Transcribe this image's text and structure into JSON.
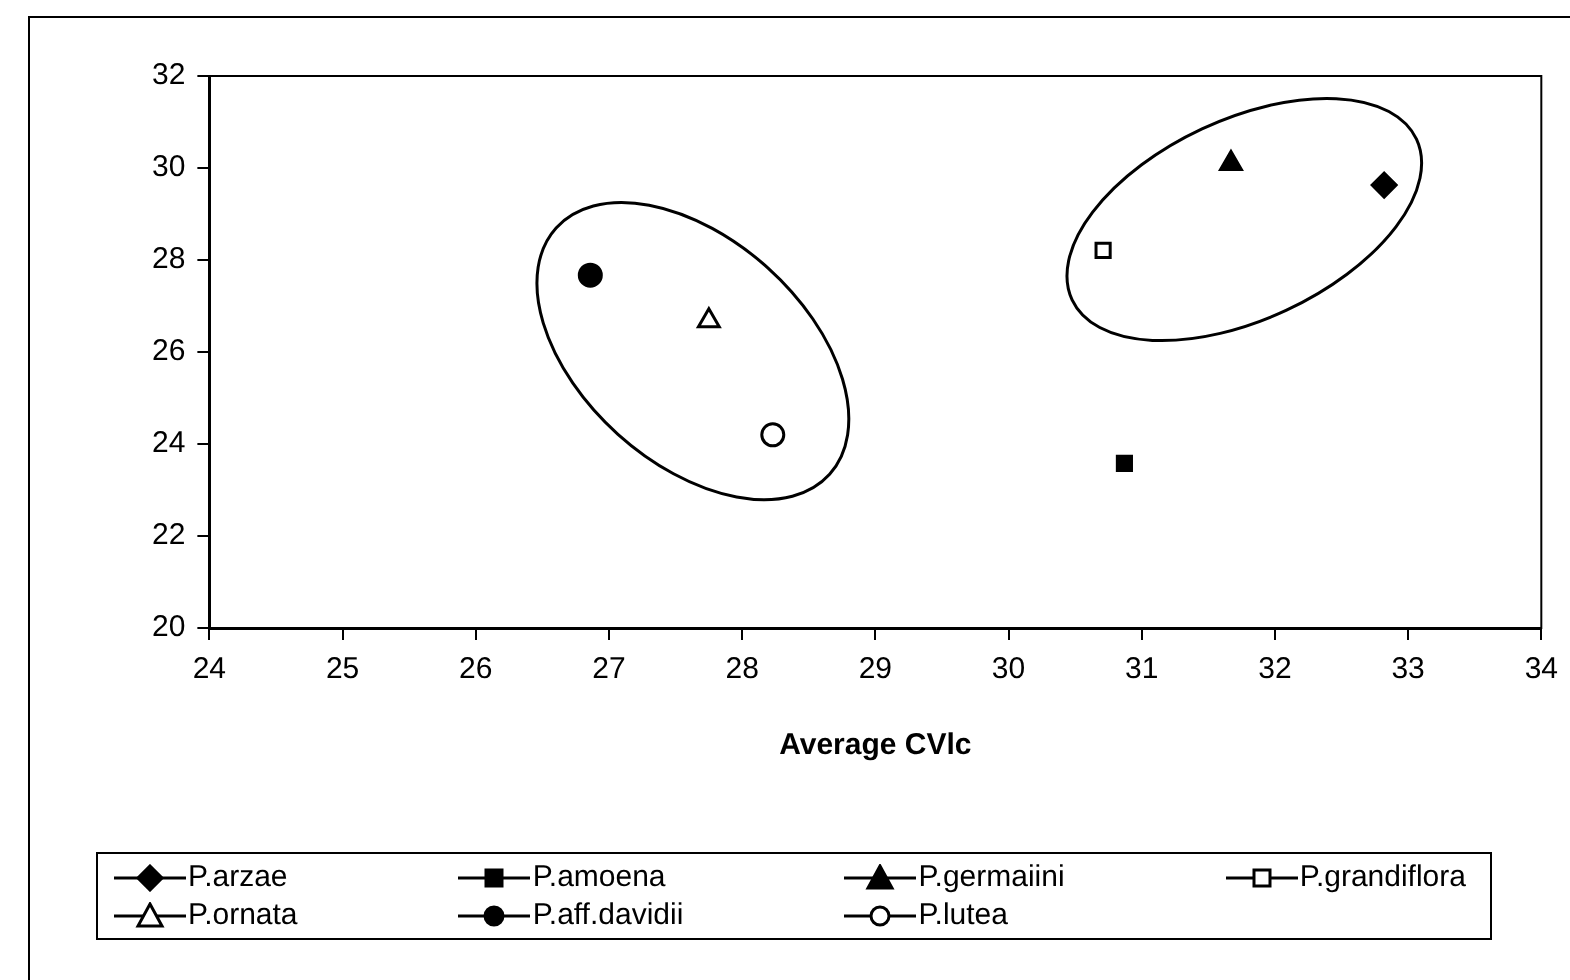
{
  "chart_data": {
    "type": "scatter",
    "xlabel": "Average CVlc",
    "xlim": [
      24,
      34
    ],
    "xticks": [
      24,
      25,
      26,
      27,
      28,
      29,
      30,
      31,
      32,
      33,
      34
    ],
    "ylim": [
      20,
      32
    ],
    "yticks": [
      20,
      22,
      24,
      26,
      28,
      30,
      32
    ],
    "grid": false,
    "legend": "bottom",
    "series": [
      {
        "name": "P.arzae",
        "color": "#000000",
        "marker": "diamond",
        "x": [
          32.82
        ],
        "values": [
          29.63
        ]
      },
      {
        "name": "P.amoena",
        "color": "#000000",
        "marker": "square",
        "x": [
          30.87
        ],
        "values": [
          23.58
        ]
      },
      {
        "name": "P.germaiini",
        "color": "#000000",
        "marker": "triangle",
        "x": [
          31.67
        ],
        "values": [
          30.1
        ]
      },
      {
        "name": "P.grandiflora",
        "color": "#ffffff",
        "marker": "square",
        "x": [
          30.71
        ],
        "values": [
          28.21
        ]
      },
      {
        "name": "P.ornata",
        "color": "#ffffff",
        "marker": "triangle",
        "x": [
          27.75
        ],
        "values": [
          26.68
        ]
      },
      {
        "name": "P.aff.davidii",
        "color": "#000000",
        "marker": "circle",
        "x": [
          26.86
        ],
        "values": [
          27.67
        ]
      },
      {
        "name": "P.lutea",
        "color": "#ffffff",
        "marker": "circle",
        "x": [
          28.23
        ],
        "values": [
          24.2
        ]
      }
    ]
  }
}
